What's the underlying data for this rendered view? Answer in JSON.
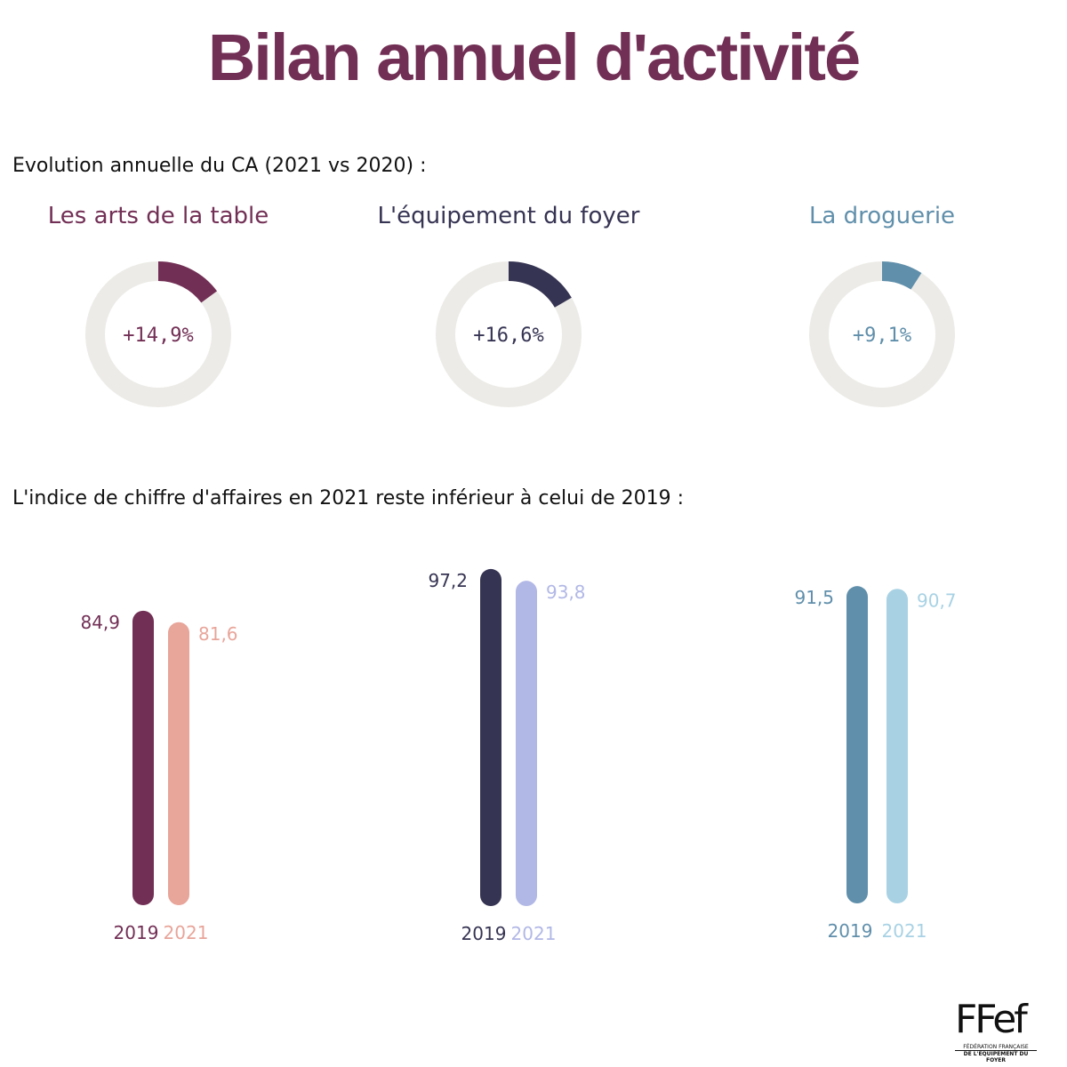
{
  "title": "Bilan annuel d'activité",
  "section1_heading": "Evolution annuelle du CA (2021 vs 2020) :",
  "section2_heading": "L'indice de chiffre d'affaires en 2021 reste inférieur à celui de 2019 :",
  "colors": {
    "title": "#722f55",
    "track": "#ecebe7",
    "arts_2019": "#722f55",
    "arts_2021": "#e8a59a",
    "equip_2019": "#363453",
    "equip_2021": "#b2b8e6",
    "drog_2019": "#608fab",
    "drog_2021": "#a8d2e4"
  },
  "chart_data": [
    {
      "type": "pie",
      "subtype": "donut",
      "title": "Les arts de la table",
      "value": 14.9,
      "value_label": "+14,9%",
      "color": "#722f55"
    },
    {
      "type": "pie",
      "subtype": "donut",
      "title": "L'équipement du foyer",
      "value": 16.6,
      "value_label": "+16,6%",
      "color": "#363453"
    },
    {
      "type": "pie",
      "subtype": "donut",
      "title": "La droguerie",
      "value": 9.1,
      "value_label": "+9,1%",
      "color": "#608fab"
    },
    {
      "type": "bar",
      "categories": [
        "2019",
        "2021"
      ],
      "values": [
        84.9,
        81.6
      ],
      "value_labels": [
        "84,9",
        "81,6"
      ],
      "colors": [
        "#722f55",
        "#e8a59a"
      ]
    },
    {
      "type": "bar",
      "categories": [
        "2019",
        "2021"
      ],
      "values": [
        97.2,
        93.8
      ],
      "value_labels": [
        "97,2",
        "93,8"
      ],
      "colors": [
        "#363453",
        "#b2b8e6"
      ]
    },
    {
      "type": "bar",
      "categories": [
        "2019",
        "2021"
      ],
      "values": [
        91.5,
        90.7
      ],
      "value_labels": [
        "91,5",
        "90,7"
      ],
      "colors": [
        "#608fab",
        "#a8d2e4"
      ]
    }
  ],
  "logo": {
    "mark": "FFef",
    "line1": "FÉDÉRATION FRANÇAISE",
    "line2": "DE L'ÉQUIPEMENT DU FOYER"
  }
}
